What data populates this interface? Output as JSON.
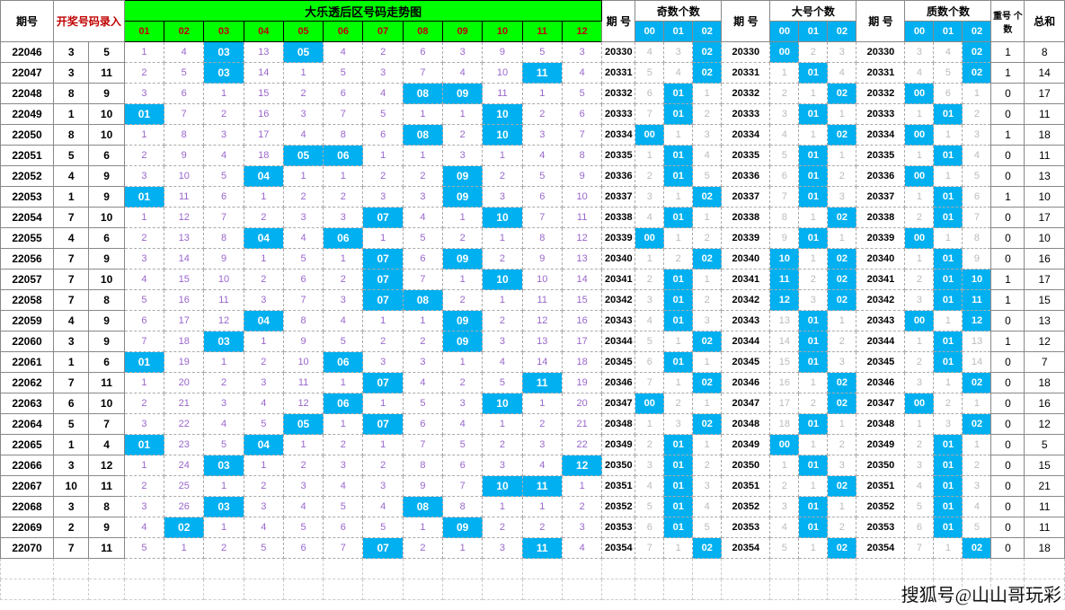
{
  "headers": {
    "period": "期号",
    "entry": "开奖号码录入",
    "trend": "大乐透后区号码走势图",
    "trend_nums": [
      "01",
      "02",
      "03",
      "04",
      "05",
      "06",
      "07",
      "08",
      "09",
      "10",
      "11",
      "12"
    ],
    "period2": "期\n号",
    "odd": "奇数个数",
    "big": "大号个数",
    "prime": "质数个数",
    "sub_counts": [
      "00",
      "01",
      "02"
    ],
    "repeat": "重号\n个数",
    "total": "总和"
  },
  "colors": {
    "green": "#00ff00",
    "blue": "#00b0f0",
    "red_text": "#c00000",
    "purple": "#9966cc",
    "border": "#888888",
    "dashed": "#aaaaaa"
  },
  "rows": [
    {
      "p": "22046",
      "e": [
        3,
        5
      ],
      "t": [
        1,
        4,
        "03",
        13,
        "05",
        4,
        2,
        6,
        3,
        9,
        5,
        3
      ],
      "sp": "20330",
      "o": [
        "4",
        "3",
        "02"
      ],
      "sp2": "20330",
      "b": [
        "00",
        "2",
        "3"
      ],
      "sp3": "20330",
      "pr": [
        "3",
        "4",
        "02"
      ],
      "r": 1,
      "s": 8
    },
    {
      "p": "22047",
      "e": [
        3,
        11
      ],
      "t": [
        2,
        5,
        "03",
        14,
        1,
        5,
        3,
        7,
        4,
        10,
        "11",
        4
      ],
      "sp": "20331",
      "o": [
        "5",
        "4",
        "02"
      ],
      "sp2": "20331",
      "b": [
        "1",
        "01",
        "4"
      ],
      "sp3": "20331",
      "pr": [
        "4",
        "5",
        "02"
      ],
      "r": 1,
      "s": 14
    },
    {
      "p": "22048",
      "e": [
        8,
        9
      ],
      "t": [
        3,
        6,
        1,
        15,
        2,
        6,
        4,
        "08",
        "09",
        11,
        1,
        5
      ],
      "sp": "20332",
      "o": [
        "6",
        "01",
        "1"
      ],
      "sp2": "20332",
      "b": [
        "2",
        "1",
        "02"
      ],
      "sp3": "20332",
      "pr": [
        "00",
        "6",
        "1"
      ],
      "r": 0,
      "s": 17
    },
    {
      "p": "22049",
      "e": [
        1,
        10
      ],
      "t": [
        "01",
        7,
        2,
        16,
        3,
        7,
        5,
        1,
        1,
        "10",
        2,
        6
      ],
      "sp": "20333",
      "o": [
        "7",
        "01",
        "2"
      ],
      "sp2": "20333",
      "b": [
        "3",
        "01",
        "1"
      ],
      "sp3": "20333",
      "pr": [
        "1",
        "01",
        "2"
      ],
      "r": 0,
      "s": 11
    },
    {
      "p": "22050",
      "e": [
        8,
        10
      ],
      "t": [
        1,
        8,
        3,
        17,
        4,
        8,
        6,
        "08",
        2,
        "10",
        3,
        7
      ],
      "sp": "20334",
      "o": [
        "00",
        "1",
        "3"
      ],
      "sp2": "20334",
      "b": [
        "4",
        "1",
        "02"
      ],
      "sp3": "20334",
      "pr": [
        "00",
        "1",
        "3"
      ],
      "r": 1,
      "s": 18
    },
    {
      "p": "22051",
      "e": [
        5,
        6
      ],
      "t": [
        2,
        9,
        4,
        18,
        "05",
        "06",
        1,
        1,
        3,
        1,
        4,
        8
      ],
      "sp": "20335",
      "o": [
        "1",
        "01",
        "4"
      ],
      "sp2": "20335",
      "b": [
        "5",
        "01",
        "1"
      ],
      "sp3": "20335",
      "pr": [
        "1",
        "01",
        "4"
      ],
      "r": 0,
      "s": 11
    },
    {
      "p": "22052",
      "e": [
        4,
        9
      ],
      "t": [
        3,
        10,
        5,
        "04",
        1,
        1,
        2,
        2,
        "09",
        2,
        5,
        9
      ],
      "sp": "20336",
      "o": [
        "2",
        "01",
        "5"
      ],
      "sp2": "20336",
      "b": [
        "6",
        "01",
        "2"
      ],
      "sp3": "20336",
      "pr": [
        "00",
        "1",
        "5"
      ],
      "r": 0,
      "s": 13
    },
    {
      "p": "22053",
      "e": [
        1,
        9
      ],
      "t": [
        "01",
        11,
        6,
        1,
        2,
        2,
        3,
        3,
        "09",
        3,
        6,
        10
      ],
      "sp": "20337",
      "o": [
        "3",
        "1",
        "02"
      ],
      "sp2": "20337",
      "b": [
        "7",
        "01",
        "3"
      ],
      "sp3": "20337",
      "pr": [
        "1",
        "01",
        "6"
      ],
      "r": 1,
      "s": 10
    },
    {
      "p": "22054",
      "e": [
        7,
        10
      ],
      "t": [
        1,
        12,
        7,
        2,
        3,
        3,
        "07",
        4,
        1,
        "10",
        7,
        11
      ],
      "sp": "20338",
      "o": [
        "4",
        "01",
        "1"
      ],
      "sp2": "20338",
      "b": [
        "8",
        "1",
        "02"
      ],
      "sp3": "20338",
      "pr": [
        "2",
        "01",
        "7"
      ],
      "r": 0,
      "s": 17
    },
    {
      "p": "22055",
      "e": [
        4,
        6
      ],
      "t": [
        2,
        13,
        8,
        "04",
        4,
        "06",
        1,
        5,
        2,
        1,
        8,
        12
      ],
      "sp": "20339",
      "o": [
        "00",
        "1",
        "2"
      ],
      "sp2": "20339",
      "b": [
        "9",
        "01",
        "1"
      ],
      "sp3": "20339",
      "pr": [
        "00",
        "1",
        "8"
      ],
      "r": 0,
      "s": 10
    },
    {
      "p": "22056",
      "e": [
        7,
        9
      ],
      "t": [
        3,
        14,
        9,
        1,
        5,
        1,
        "07",
        6,
        "09",
        2,
        9,
        13
      ],
      "sp": "20340",
      "o": [
        "1",
        "2",
        "02"
      ],
      "sp2": "20340",
      "b": [
        "10",
        "1",
        "02"
      ],
      "sp3": "20340",
      "pr": [
        "1",
        "01",
        "9"
      ],
      "r": 0,
      "s": 16
    },
    {
      "p": "22057",
      "e": [
        7,
        10
      ],
      "t": [
        4,
        15,
        10,
        2,
        6,
        2,
        "07",
        7,
        1,
        "10",
        10,
        14
      ],
      "sp": "20341",
      "o": [
        "2",
        "01",
        "1"
      ],
      "sp2": "20341",
      "b": [
        "11",
        "2",
        "02"
      ],
      "sp3": "20341",
      "pr": [
        "2",
        "01",
        "10"
      ],
      "r": 1,
      "s": 17
    },
    {
      "p": "22058",
      "e": [
        7,
        8
      ],
      "t": [
        5,
        16,
        11,
        3,
        7,
        3,
        "07",
        "08",
        2,
        1,
        11,
        15
      ],
      "sp": "20342",
      "o": [
        "3",
        "01",
        "2"
      ],
      "sp2": "20342",
      "b": [
        "12",
        "3",
        "02"
      ],
      "sp3": "20342",
      "pr": [
        "3",
        "01",
        "11"
      ],
      "r": 1,
      "s": 15
    },
    {
      "p": "22059",
      "e": [
        4,
        9
      ],
      "t": [
        6,
        17,
        12,
        "04",
        8,
        4,
        1,
        1,
        "09",
        2,
        12,
        16
      ],
      "sp": "20343",
      "o": [
        "4",
        "01",
        "3"
      ],
      "sp2": "20343",
      "b": [
        "13",
        "01",
        "1"
      ],
      "sp3": "20343",
      "pr": [
        "00",
        "1",
        "12"
      ],
      "r": 0,
      "s": 13
    },
    {
      "p": "22060",
      "e": [
        3,
        9
      ],
      "t": [
        7,
        18,
        "03",
        1,
        9,
        5,
        2,
        2,
        "09",
        3,
        13,
        17
      ],
      "sp": "20344",
      "o": [
        "5",
        "1",
        "02"
      ],
      "sp2": "20344",
      "b": [
        "14",
        "01",
        "2"
      ],
      "sp3": "20344",
      "pr": [
        "1",
        "01",
        "13"
      ],
      "r": 1,
      "s": 12
    },
    {
      "p": "22061",
      "e": [
        1,
        6
      ],
      "t": [
        "01",
        19,
        1,
        2,
        10,
        "06",
        3,
        3,
        1,
        4,
        14,
        18
      ],
      "sp": "20345",
      "o": [
        "6",
        "01",
        "1"
      ],
      "sp2": "20345",
      "b": [
        "15",
        "01",
        "3"
      ],
      "sp3": "20345",
      "pr": [
        "2",
        "01",
        "14"
      ],
      "r": 0,
      "s": 7
    },
    {
      "p": "22062",
      "e": [
        7,
        11
      ],
      "t": [
        1,
        20,
        2,
        3,
        11,
        1,
        "07",
        4,
        2,
        5,
        "11",
        19
      ],
      "sp": "20346",
      "o": [
        "7",
        "1",
        "02"
      ],
      "sp2": "20346",
      "b": [
        "16",
        "1",
        "02"
      ],
      "sp3": "20346",
      "pr": [
        "3",
        "1",
        "02"
      ],
      "r": 0,
      "s": 18
    },
    {
      "p": "22063",
      "e": [
        6,
        10
      ],
      "t": [
        2,
        21,
        3,
        4,
        12,
        "06",
        1,
        5,
        3,
        "10",
        1,
        20
      ],
      "sp": "20347",
      "o": [
        "00",
        "2",
        "1"
      ],
      "sp2": "20347",
      "b": [
        "17",
        "2",
        "02"
      ],
      "sp3": "20347",
      "pr": [
        "00",
        "2",
        "1"
      ],
      "r": 0,
      "s": 16
    },
    {
      "p": "22064",
      "e": [
        5,
        7
      ],
      "t": [
        3,
        22,
        4,
        5,
        "05",
        1,
        "07",
        6,
        4,
        1,
        2,
        21
      ],
      "sp": "20348",
      "o": [
        "1",
        "3",
        "02"
      ],
      "sp2": "20348",
      "b": [
        "18",
        "01",
        "1"
      ],
      "sp3": "20348",
      "pr": [
        "1",
        "3",
        "02"
      ],
      "r": 0,
      "s": 12
    },
    {
      "p": "22065",
      "e": [
        1,
        4
      ],
      "t": [
        "01",
        23,
        5,
        "04",
        1,
        2,
        1,
        7,
        5,
        2,
        3,
        22
      ],
      "sp": "20349",
      "o": [
        "2",
        "01",
        "1"
      ],
      "sp2": "20349",
      "b": [
        "00",
        "1",
        "2"
      ],
      "sp3": "20349",
      "pr": [
        "2",
        "01",
        "1"
      ],
      "r": 0,
      "s": 5
    },
    {
      "p": "22066",
      "e": [
        3,
        12
      ],
      "t": [
        1,
        24,
        "03",
        1,
        2,
        3,
        2,
        8,
        6,
        3,
        4,
        "12"
      ],
      "sp": "20350",
      "o": [
        "3",
        "01",
        "2"
      ],
      "sp2": "20350",
      "b": [
        "1",
        "01",
        "3"
      ],
      "sp3": "20350",
      "pr": [
        "3",
        "01",
        "2"
      ],
      "r": 0,
      "s": 15
    },
    {
      "p": "22067",
      "e": [
        10,
        11
      ],
      "t": [
        2,
        25,
        1,
        2,
        3,
        4,
        3,
        9,
        7,
        "10",
        "11",
        1
      ],
      "sp": "20351",
      "o": [
        "4",
        "01",
        "3"
      ],
      "sp2": "20351",
      "b": [
        "2",
        "1",
        "02"
      ],
      "sp3": "20351",
      "pr": [
        "4",
        "01",
        "3"
      ],
      "r": 0,
      "s": 21
    },
    {
      "p": "22068",
      "e": [
        3,
        8
      ],
      "t": [
        3,
        26,
        "03",
        3,
        4,
        5,
        4,
        "08",
        8,
        1,
        1,
        2
      ],
      "sp": "20352",
      "o": [
        "5",
        "01",
        "4"
      ],
      "sp2": "20352",
      "b": [
        "3",
        "01",
        "1"
      ],
      "sp3": "20352",
      "pr": [
        "5",
        "01",
        "4"
      ],
      "r": 0,
      "s": 11
    },
    {
      "p": "22069",
      "e": [
        2,
        9
      ],
      "t": [
        4,
        "02",
        1,
        4,
        5,
        6,
        5,
        1,
        "09",
        2,
        2,
        3
      ],
      "sp": "20353",
      "o": [
        "6",
        "01",
        "5"
      ],
      "sp2": "20353",
      "b": [
        "4",
        "01",
        "2"
      ],
      "sp3": "20353",
      "pr": [
        "6",
        "01",
        "5"
      ],
      "r": 0,
      "s": 11
    },
    {
      "p": "22070",
      "e": [
        7,
        11
      ],
      "t": [
        5,
        1,
        2,
        5,
        6,
        7,
        "07",
        2,
        1,
        3,
        "11",
        4
      ],
      "sp": "20354",
      "o": [
        "7",
        "1",
        "02"
      ],
      "sp2": "20354",
      "b": [
        "5",
        "1",
        "02"
      ],
      "sp3": "20354",
      "pr": [
        "7",
        "1",
        "02"
      ],
      "r": 0,
      "s": 18
    }
  ],
  "watermark": "搜狐号@山山哥玩彩"
}
